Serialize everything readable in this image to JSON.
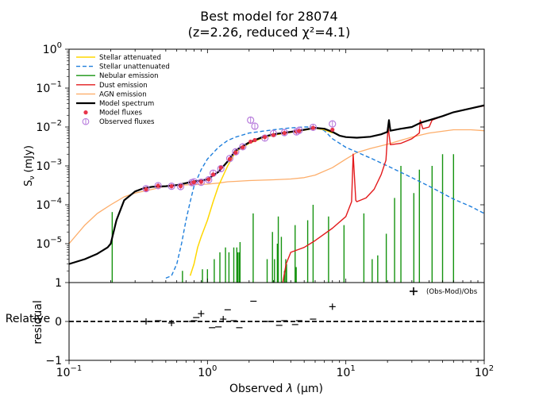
{
  "chart_data": [
    {
      "type": "line",
      "title": "Best model for 28074",
      "subtitle": "(z=2.26, reduced χ²=4.1)",
      "xscale": "log",
      "yscale": "log",
      "xlim": [
        0.1,
        100
      ],
      "ylim": [
        1e-06,
        1
      ],
      "ylabel": "Sν (mJy)",
      "ylabel_main": "S",
      "ylabel_sub": "ν",
      "ylabel_rest": " (mJy)",
      "xlabel": "",
      "xticks": [
        0.1,
        1,
        10,
        100
      ],
      "yticks": [
        {
          "value": 1,
          "label_base": "10",
          "label_exp": "0"
        },
        {
          "value": 0.1,
          "label_base": "10",
          "label_exp": "−1"
        },
        {
          "value": 0.01,
          "label_base": "10",
          "label_exp": "−2"
        },
        {
          "value": 0.001,
          "label_base": "10",
          "label_exp": "−3"
        },
        {
          "value": 0.0001,
          "label_base": "10",
          "label_exp": "−4"
        },
        {
          "value": 1e-05,
          "label_base": "10",
          "label_exp": "−5"
        },
        {
          "value": 1e-06,
          "label_base": "",
          "label_exp": "",
          "label_plain": "1"
        }
      ],
      "legend_position": "top-left",
      "legend": [
        {
          "name": "Stellar attenuated",
          "color": "#ffd700",
          "style": "solid"
        },
        {
          "name": "Stellar unattenuated",
          "color": "#1f7fdc",
          "style": "dashed"
        },
        {
          "name": "Nebular emission",
          "color": "#15930f",
          "style": "solid"
        },
        {
          "name": "Dust emission",
          "color": "#e31a1c",
          "style": "solid"
        },
        {
          "name": "AGN emission",
          "color": "#fdae6b",
          "style": "solid"
        },
        {
          "name": "Model spectrum",
          "color": "#000000",
          "style": "thick"
        },
        {
          "name": "Model fluxes",
          "color": "#e8334a",
          "style": "dot"
        },
        {
          "name": "Observed fluxes",
          "color": "#b77bdc",
          "style": "circle"
        }
      ],
      "series": [
        {
          "name": "Model spectrum",
          "x": [
            0.1,
            0.13,
            0.16,
            0.19,
            0.2,
            0.22,
            0.25,
            0.3,
            0.35,
            0.4,
            0.5,
            0.6,
            0.7,
            0.8,
            0.9,
            1.0,
            1.2,
            1.4,
            1.6,
            2.0,
            2.5,
            3.0,
            4.0,
            5.0,
            6.0,
            7.0,
            8.0,
            9.0,
            10,
            12,
            15,
            18,
            20,
            20.5,
            21,
            25,
            30,
            35,
            40,
            50,
            60,
            80,
            100
          ],
          "y": [
            3e-06,
            4e-06,
            5.5e-06,
            8e-06,
            1e-05,
            4e-05,
            0.00013,
            0.00022,
            0.00027,
            0.00029,
            0.0003,
            0.00032,
            0.00036,
            0.0004,
            0.00042,
            0.00045,
            0.0007,
            0.0013,
            0.0025,
            0.004,
            0.0055,
            0.0065,
            0.0075,
            0.0085,
            0.0095,
            0.009,
            0.0075,
            0.006,
            0.0055,
            0.0053,
            0.0056,
            0.0065,
            0.0075,
            0.015,
            0.008,
            0.009,
            0.01,
            0.013,
            0.015,
            0.019,
            0.024,
            0.03,
            0.036
          ]
        },
        {
          "name": "Stellar attenuated",
          "x": [
            0.75,
            0.8,
            0.85,
            0.9,
            1.0,
            1.1,
            1.2,
            1.4,
            1.6,
            2.0,
            2.5,
            3.0,
            4.0,
            5.0,
            6.0,
            7.0,
            8.0
          ],
          "y": [
            1.5e-06,
            3e-06,
            8e-06,
            1.5e-05,
            4e-05,
            0.00012,
            0.0003,
            0.001,
            0.0023,
            0.0038,
            0.0052,
            0.0062,
            0.0073,
            0.0083,
            0.0093,
            0.0085,
            0.007
          ]
        },
        {
          "name": "Stellar unattenuated",
          "x": [
            0.5,
            0.55,
            0.6,
            0.65,
            0.7,
            0.75,
            0.8,
            0.9,
            1.0,
            1.2,
            1.4,
            1.6,
            2.0,
            3.0,
            4.0,
            5.0,
            6.0,
            7.0,
            8.0,
            10,
            15,
            20,
            30,
            40,
            60,
            80,
            100
          ],
          "y": [
            1.3e-06,
            1.5e-06,
            3e-06,
            1e-05,
            4e-05,
            0.00012,
            0.0003,
            0.0008,
            0.0015,
            0.003,
            0.0045,
            0.0055,
            0.007,
            0.0085,
            0.0095,
            0.01,
            0.01,
            0.008,
            0.005,
            0.003,
            0.0016,
            0.001,
            0.0005,
            0.0003,
            0.00014,
            9e-05,
            6e-05
          ]
        },
        {
          "name": "Dust emission",
          "x": [
            3.5,
            3.7,
            4.0,
            5.0,
            6.0,
            8.0,
            10,
            11,
            11.3,
            11.8,
            12,
            14,
            16,
            18,
            19.5,
            20.2,
            21,
            25,
            30,
            34,
            34.5,
            36,
            40,
            42,
            50,
            60,
            80,
            100
          ],
          "y": [
            1e-06,
            3e-06,
            6e-06,
            8e-06,
            1.2e-05,
            2.5e-05,
            5e-05,
            0.00012,
            0.002,
            0.00013,
            0.00012,
            0.00015,
            0.00025,
            0.0006,
            0.0014,
            0.01,
            0.0035,
            0.0038,
            0.005,
            0.007,
            0.015,
            0.009,
            0.01,
            0.015,
            0.019,
            0.024,
            0.03,
            0.035
          ]
        },
        {
          "name": "AGN emission",
          "x": [
            0.1,
            0.13,
            0.16,
            0.2,
            0.25,
            0.3,
            0.4,
            0.5,
            0.6,
            0.8,
            1.0,
            1.2,
            1.4,
            1.6,
            2.0,
            3.0,
            4.0,
            5.0,
            6.0,
            8.0,
            10,
            12,
            15,
            20,
            30,
            40,
            60,
            80,
            100
          ],
          "y": [
            1e-05,
            3e-05,
            6e-05,
            0.0001,
            0.00016,
            0.0002,
            0.00025,
            0.0003,
            0.00032,
            0.00033,
            0.00034,
            0.00036,
            0.00039,
            0.0004,
            0.00042,
            0.00044,
            0.00046,
            0.0005,
            0.00058,
            0.0009,
            0.0015,
            0.0022,
            0.0028,
            0.0036,
            0.0055,
            0.007,
            0.0085,
            0.0085,
            0.008
          ]
        }
      ],
      "nebular_lines": [
        {
          "x": 0.205,
          "y": 6.5e-05
        },
        {
          "x": 0.66,
          "y": 2e-06
        },
        {
          "x": 0.92,
          "y": 2.2e-06
        },
        {
          "x": 1.0,
          "y": 2.2e-06
        },
        {
          "x": 1.12,
          "y": 4e-06
        },
        {
          "x": 1.23,
          "y": 6e-06
        },
        {
          "x": 1.35,
          "y": 8e-06
        },
        {
          "x": 1.43,
          "y": 6e-06
        },
        {
          "x": 1.55,
          "y": 8e-06
        },
        {
          "x": 1.63,
          "y": 8e-06
        },
        {
          "x": 1.66,
          "y": 6e-06
        },
        {
          "x": 1.7,
          "y": 6e-06
        },
        {
          "x": 1.72,
          "y": 1.1e-05
        },
        {
          "x": 2.14,
          "y": 6e-05
        },
        {
          "x": 2.7,
          "y": 4e-06
        },
        {
          "x": 2.95,
          "y": 2e-05
        },
        {
          "x": 3.05,
          "y": 4e-06
        },
        {
          "x": 3.2,
          "y": 1e-05
        },
        {
          "x": 3.25,
          "y": 5e-05
        },
        {
          "x": 3.42,
          "y": 1.5e-05
        },
        {
          "x": 3.6,
          "y": 2e-06
        },
        {
          "x": 3.68,
          "y": 4e-06
        },
        {
          "x": 3.73,
          "y": 3e-06
        },
        {
          "x": 4.3,
          "y": 3e-05
        },
        {
          "x": 4.38,
          "y": 2.5e-06
        },
        {
          "x": 5.3,
          "y": 4e-05
        },
        {
          "x": 5.8,
          "y": 0.0001
        },
        {
          "x": 7.5,
          "y": 5e-05
        },
        {
          "x": 9.7,
          "y": 3e-05
        },
        {
          "x": 13.5,
          "y": 6e-05
        },
        {
          "x": 15.5,
          "y": 4e-06
        },
        {
          "x": 17.0,
          "y": 5e-06
        },
        {
          "x": 19.6,
          "y": 1.8e-05
        },
        {
          "x": 22.5,
          "y": 0.00015
        },
        {
          "x": 25.0,
          "y": 0.001
        },
        {
          "x": 31.0,
          "y": 0.0002
        },
        {
          "x": 34.0,
          "y": 0.0008
        },
        {
          "x": 42.0,
          "y": 0.001
        },
        {
          "x": 50.0,
          "y": 0.002
        },
        {
          "x": 60.0,
          "y": 0.002
        }
      ],
      "points": [
        {
          "x": 0.36,
          "model": 0.00025,
          "obs": 0.00026
        },
        {
          "x": 0.44,
          "model": 0.00031,
          "obs": 0.00031
        },
        {
          "x": 0.55,
          "model": 0.0003,
          "obs": 0.0003
        },
        {
          "x": 0.64,
          "model": 0.0003,
          "obs": 0.000295
        },
        {
          "x": 0.77,
          "model": 0.00036,
          "obs": 0.00037
        },
        {
          "x": 0.8,
          "model": 0.00038,
          "obs": 0.00039
        },
        {
          "x": 0.9,
          "model": 0.00039,
          "obs": 0.00038
        },
        {
          "x": 1.02,
          "model": 0.00045,
          "obs": 0.00044
        },
        {
          "x": 1.1,
          "model": 0.0006,
          "obs": 0.00065
        },
        {
          "x": 1.25,
          "model": 0.0009,
          "obs": 0.00085
        },
        {
          "x": 1.45,
          "model": 0.0015,
          "obs": 0.00155
        },
        {
          "x": 1.6,
          "model": 0.0022,
          "obs": 0.0023
        },
        {
          "x": 1.8,
          "model": 0.003,
          "obs": 0.0031
        },
        {
          "x": 2.05,
          "model": 0.0042,
          "obs": 0.015
        },
        {
          "x": 2.2,
          "model": 0.0046,
          "obs": 0.0105
        },
        {
          "x": 2.6,
          "model": 0.0055,
          "obs": 0.0052
        },
        {
          "x": 3.0,
          "model": 0.0062,
          "obs": 0.0068
        },
        {
          "x": 3.6,
          "model": 0.007,
          "obs": 0.0072
        },
        {
          "x": 4.4,
          "model": 0.0076,
          "obs": 0.0075
        },
        {
          "x": 4.6,
          "model": 0.0079,
          "obs": 0.0082
        },
        {
          "x": 5.8,
          "model": 0.0095,
          "obs": 0.0098
        },
        {
          "x": 8.0,
          "model": 0.0085,
          "obs": 0.012
        }
      ]
    },
    {
      "type": "scatter",
      "ylabel": "Relative residual",
      "ylabel_line1": "Relative",
      "ylabel_line2": "residual",
      "xlabel": "Observed λ (μm)",
      "xlabel_main": "Observed ",
      "xlabel_lambda": "λ",
      "xlabel_rest": " (μm)",
      "xscale": "log",
      "xlim": [
        0.1,
        100
      ],
      "ylim": [
        -1,
        1
      ],
      "yticks": [
        "−1",
        "0"
      ],
      "xticks": [
        {
          "value": 0.1,
          "label_base": "10",
          "label_exp": "−1"
        },
        {
          "value": 1,
          "label_base": "10",
          "label_exp": "0"
        },
        {
          "value": 10,
          "label_base": "10",
          "label_exp": "1"
        },
        {
          "value": 100,
          "label_base": "10",
          "label_exp": "2"
        }
      ],
      "legend": [
        {
          "name": "(Obs-Mod)/Obs",
          "marker": "+"
        }
      ],
      "reference_line": 0,
      "residuals": [
        {
          "x": 0.36,
          "y": 0.0,
          "marker": "+"
        },
        {
          "x": 0.44,
          "y": 0.02,
          "marker": "+"
        },
        {
          "x": 0.55,
          "y": -0.04,
          "marker": "+"
        },
        {
          "x": 0.77,
          "y": 0.0,
          "marker": "+"
        },
        {
          "x": 0.8,
          "y": 0.02,
          "marker": "+"
        },
        {
          "x": 0.83,
          "y": 0.1,
          "marker": "+"
        },
        {
          "x": 0.9,
          "y": 0.2,
          "marker": "+"
        },
        {
          "x": 1.08,
          "y": -0.16,
          "marker": "+"
        },
        {
          "x": 1.2,
          "y": -0.14,
          "marker": "+"
        },
        {
          "x": 1.3,
          "y": 0.06,
          "marker": "+"
        },
        {
          "x": 1.4,
          "y": 0.3,
          "marker": "+"
        },
        {
          "x": 1.55,
          "y": 0.02,
          "marker": "+"
        },
        {
          "x": 1.7,
          "y": -0.16,
          "marker": "+"
        },
        {
          "x": 2.15,
          "y": 0.52,
          "marker": "+"
        },
        {
          "x": 2.8,
          "y": 0.0,
          "marker": "+"
        },
        {
          "x": 3.3,
          "y": -0.1,
          "marker": "+"
        },
        {
          "x": 3.6,
          "y": 0.02,
          "marker": "+"
        },
        {
          "x": 4.3,
          "y": -0.08,
          "marker": "+"
        },
        {
          "x": 4.6,
          "y": 0.02,
          "marker": "+"
        },
        {
          "x": 5.8,
          "y": 0.06,
          "marker": "+"
        },
        {
          "x": 8.0,
          "y": 0.38,
          "marker": "+"
        }
      ]
    }
  ]
}
